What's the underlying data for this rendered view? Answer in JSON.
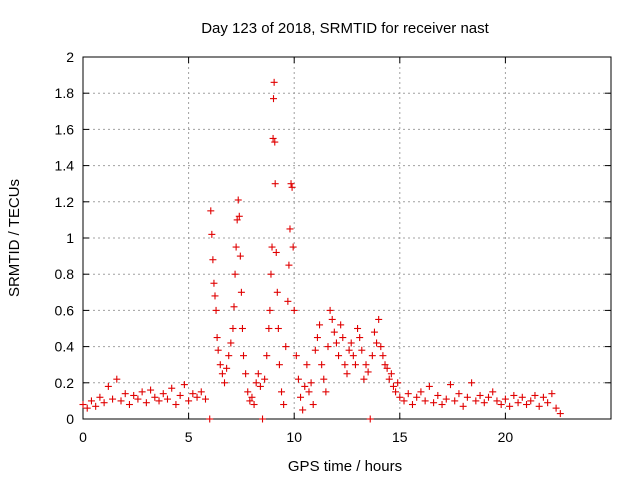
{
  "chart_data": {
    "type": "scatter",
    "title": "Day 123 of 2018, SRMTID for receiver nast",
    "xlabel": "GPS time / hours",
    "ylabel": "SRMTID / TECUs",
    "xlim": [
      0,
      25
    ],
    "ylim": [
      0,
      2
    ],
    "xticks": [
      0,
      5,
      10,
      15,
      20
    ],
    "xtick_labels": [
      "0",
      "5",
      "10",
      "15",
      "20"
    ],
    "yticks": [
      0,
      0.2,
      0.4,
      0.6,
      0.8,
      1,
      1.2,
      1.4,
      1.6,
      1.8,
      2
    ],
    "ytick_labels": [
      "0",
      "0.2",
      "0.4",
      "0.6",
      "0.8",
      "1",
      "1.2",
      "1.4",
      "1.6",
      "1.8",
      "2"
    ],
    "grid": true,
    "marker": "+",
    "color": "#e00000",
    "series": [
      {
        "name": "SRMTID",
        "points": [
          [
            0.0,
            0.08
          ],
          [
            0.2,
            0.06
          ],
          [
            0.4,
            0.1
          ],
          [
            0.6,
            0.07
          ],
          [
            0.8,
            0.12
          ],
          [
            1.0,
            0.09
          ],
          [
            1.2,
            0.18
          ],
          [
            1.4,
            0.11
          ],
          [
            1.6,
            0.22
          ],
          [
            1.8,
            0.1
          ],
          [
            2.0,
            0.14
          ],
          [
            2.2,
            0.08
          ],
          [
            2.4,
            0.13
          ],
          [
            2.6,
            0.11
          ],
          [
            2.8,
            0.15
          ],
          [
            3.0,
            0.09
          ],
          [
            3.2,
            0.16
          ],
          [
            3.4,
            0.12
          ],
          [
            3.6,
            0.1
          ],
          [
            3.8,
            0.14
          ],
          [
            4.0,
            0.11
          ],
          [
            4.2,
            0.17
          ],
          [
            4.4,
            0.08
          ],
          [
            4.6,
            0.13
          ],
          [
            4.8,
            0.19
          ],
          [
            5.0,
            0.1
          ],
          [
            5.2,
            0.14
          ],
          [
            5.4,
            0.12
          ],
          [
            5.6,
            0.15
          ],
          [
            5.8,
            0.11
          ],
          [
            6.0,
            0.0
          ],
          [
            6.05,
            1.15
          ],
          [
            6.1,
            1.02
          ],
          [
            6.15,
            0.88
          ],
          [
            6.2,
            0.75
          ],
          [
            6.25,
            0.68
          ],
          [
            6.3,
            0.6
          ],
          [
            6.35,
            0.45
          ],
          [
            6.4,
            0.38
          ],
          [
            6.5,
            0.3
          ],
          [
            6.6,
            0.25
          ],
          [
            6.7,
            0.2
          ],
          [
            6.8,
            0.28
          ],
          [
            6.9,
            0.35
          ],
          [
            7.0,
            0.42
          ],
          [
            7.1,
            0.5
          ],
          [
            7.15,
            0.62
          ],
          [
            7.2,
            0.8
          ],
          [
            7.25,
            0.95
          ],
          [
            7.3,
            1.1
          ],
          [
            7.35,
            1.21
          ],
          [
            7.4,
            1.12
          ],
          [
            7.45,
            0.9
          ],
          [
            7.5,
            0.7
          ],
          [
            7.55,
            0.5
          ],
          [
            7.6,
            0.35
          ],
          [
            7.7,
            0.25
          ],
          [
            7.8,
            0.15
          ],
          [
            7.9,
            0.1
          ],
          [
            8.0,
            0.12
          ],
          [
            8.1,
            0.08
          ],
          [
            8.2,
            0.2
          ],
          [
            8.3,
            0.25
          ],
          [
            8.4,
            0.18
          ],
          [
            8.5,
            0.0
          ],
          [
            8.6,
            0.22
          ],
          [
            8.7,
            0.35
          ],
          [
            8.8,
            0.5
          ],
          [
            8.85,
            0.6
          ],
          [
            8.9,
            0.8
          ],
          [
            8.95,
            0.95
          ],
          [
            9.0,
            1.55
          ],
          [
            9.02,
            1.77
          ],
          [
            9.05,
            1.86
          ],
          [
            9.08,
            1.53
          ],
          [
            9.1,
            1.3
          ],
          [
            9.15,
            0.92
          ],
          [
            9.2,
            0.7
          ],
          [
            9.25,
            0.5
          ],
          [
            9.3,
            0.3
          ],
          [
            9.4,
            0.15
          ],
          [
            9.5,
            0.08
          ],
          [
            9.6,
            0.4
          ],
          [
            9.7,
            0.65
          ],
          [
            9.75,
            0.85
          ],
          [
            9.8,
            1.05
          ],
          [
            9.85,
            1.3
          ],
          [
            9.9,
            1.28
          ],
          [
            9.95,
            0.95
          ],
          [
            10.0,
            0.6
          ],
          [
            10.1,
            0.35
          ],
          [
            10.2,
            0.22
          ],
          [
            10.3,
            0.12
          ],
          [
            10.4,
            0.05
          ],
          [
            10.5,
            0.18
          ],
          [
            10.6,
            0.3
          ],
          [
            10.7,
            0.15
          ],
          [
            10.8,
            0.2
          ],
          [
            10.9,
            0.08
          ],
          [
            11.0,
            0.38
          ],
          [
            11.1,
            0.45
          ],
          [
            11.2,
            0.52
          ],
          [
            11.3,
            0.3
          ],
          [
            11.4,
            0.22
          ],
          [
            11.5,
            0.15
          ],
          [
            11.6,
            0.4
          ],
          [
            11.7,
            0.6
          ],
          [
            11.8,
            0.55
          ],
          [
            11.9,
            0.48
          ],
          [
            12.0,
            0.42
          ],
          [
            12.1,
            0.35
          ],
          [
            12.2,
            0.52
          ],
          [
            12.3,
            0.45
          ],
          [
            12.4,
            0.3
          ],
          [
            12.5,
            0.25
          ],
          [
            12.6,
            0.38
          ],
          [
            12.7,
            0.42
          ],
          [
            12.8,
            0.35
          ],
          [
            12.9,
            0.3
          ],
          [
            13.0,
            0.5
          ],
          [
            13.1,
            0.45
          ],
          [
            13.2,
            0.38
          ],
          [
            13.3,
            0.22
          ],
          [
            13.4,
            0.3
          ],
          [
            13.5,
            0.26
          ],
          [
            13.6,
            0.0
          ],
          [
            13.7,
            0.35
          ],
          [
            13.8,
            0.48
          ],
          [
            13.9,
            0.42
          ],
          [
            14.0,
            0.55
          ],
          [
            14.1,
            0.4
          ],
          [
            14.2,
            0.35
          ],
          [
            14.3,
            0.3
          ],
          [
            14.4,
            0.28
          ],
          [
            14.5,
            0.22
          ],
          [
            14.6,
            0.25
          ],
          [
            14.7,
            0.18
          ],
          [
            14.8,
            0.15
          ],
          [
            14.9,
            0.2
          ],
          [
            15.0,
            0.12
          ],
          [
            15.2,
            0.1
          ],
          [
            15.4,
            0.14
          ],
          [
            15.6,
            0.08
          ],
          [
            15.8,
            0.12
          ],
          [
            16.0,
            0.15
          ],
          [
            16.2,
            0.1
          ],
          [
            16.4,
            0.18
          ],
          [
            16.6,
            0.09
          ],
          [
            16.8,
            0.13
          ],
          [
            17.0,
            0.08
          ],
          [
            17.2,
            0.11
          ],
          [
            17.4,
            0.19
          ],
          [
            17.6,
            0.1
          ],
          [
            17.8,
            0.14
          ],
          [
            18.0,
            0.07
          ],
          [
            18.2,
            0.12
          ],
          [
            18.4,
            0.2
          ],
          [
            18.6,
            0.1
          ],
          [
            18.8,
            0.13
          ],
          [
            19.0,
            0.09
          ],
          [
            19.2,
            0.12
          ],
          [
            19.4,
            0.15
          ],
          [
            19.6,
            0.1
          ],
          [
            19.8,
            0.08
          ],
          [
            20.0,
            0.11
          ],
          [
            20.2,
            0.07
          ],
          [
            20.4,
            0.13
          ],
          [
            20.6,
            0.09
          ],
          [
            20.8,
            0.12
          ],
          [
            21.0,
            0.08
          ],
          [
            21.2,
            0.1
          ],
          [
            21.4,
            0.13
          ],
          [
            21.6,
            0.07
          ],
          [
            21.8,
            0.12
          ],
          [
            22.0,
            0.09
          ],
          [
            22.2,
            0.14
          ],
          [
            22.4,
            0.06
          ],
          [
            22.6,
            0.03
          ]
        ]
      }
    ]
  }
}
